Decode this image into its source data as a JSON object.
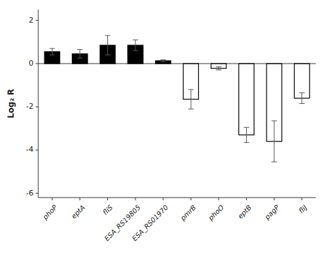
{
  "chart_data": {
    "type": "bar",
    "ylabel": "Log₂ R",
    "categories": [
      "phoP",
      "eptA",
      "fliS",
      "ESA_RS19805",
      "ESA_RS01970",
      "pmrB",
      "phoO",
      "eptB",
      "pagP",
      "fliJ"
    ],
    "values": [
      0.55,
      0.45,
      0.85,
      0.85,
      0.13,
      -1.65,
      -0.22,
      -3.3,
      -3.6,
      -1.6
    ],
    "errors": [
      0.15,
      0.2,
      0.45,
      0.25,
      0.05,
      0.45,
      0.07,
      0.35,
      0.95,
      0.25
    ],
    "colors": [
      "black",
      "black",
      "black",
      "black",
      "black",
      "white",
      "white",
      "white",
      "white",
      "white"
    ],
    "ylim": [
      -6.2,
      2.5
    ],
    "yticks": [
      -6,
      -4,
      -2,
      0,
      2
    ],
    "grid": false
  }
}
